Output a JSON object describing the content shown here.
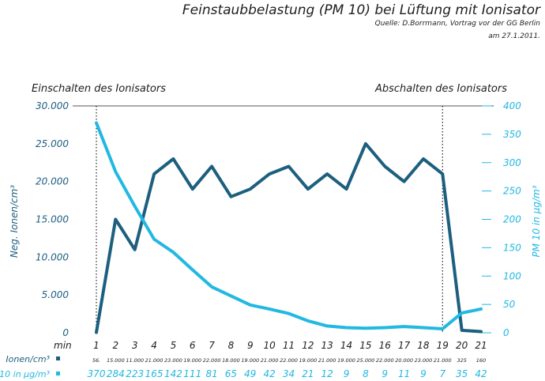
{
  "header": {
    "title": "Feinstaubbelastung (PM 10) bei Lüftung mit Ionisator",
    "source_line1": "Quelle: D.Borrmann, Vortrag vor der GG Berlin",
    "source_line2": "am 27.1.2011."
  },
  "annotations": {
    "start": "Einschalten des Ionisators",
    "stop": "Abschalten des Ionisators"
  },
  "colors": {
    "ions": "#1d5f7e",
    "pm10": "#21b8e2",
    "text": "#1e1e1e"
  },
  "chart_data": {
    "type": "line",
    "title": "Feinstaubbelastung (PM 10) bei Lüftung mit Ionisator",
    "xlabel": "min",
    "x": [
      1,
      2,
      3,
      4,
      5,
      6,
      7,
      8,
      9,
      10,
      11,
      12,
      13,
      14,
      15,
      16,
      17,
      18,
      19,
      20,
      21
    ],
    "y_left": {
      "label": "Neg. Ionen/cm³",
      "range": [
        0,
        30000
      ],
      "ticks": [
        "30.000",
        "25.000",
        "20.000",
        "15.000",
        "10.000",
        "5.000",
        "0"
      ]
    },
    "y_right": {
      "label": "PM 10 in µg/m³",
      "range": [
        0,
        400
      ],
      "ticks": [
        "400",
        "350",
        "300",
        "250",
        "200",
        "150",
        "100",
        "50",
        "0"
      ]
    },
    "series": [
      {
        "name": "Ionen/cm³",
        "axis": "left",
        "color": "#1d5f7e",
        "values": [
          56,
          15000,
          11000,
          21000,
          23000,
          19000,
          22000,
          18000,
          19000,
          21000,
          22000,
          19000,
          21000,
          19000,
          25000,
          22000,
          20000,
          23000,
          21000,
          325,
          160
        ],
        "labels": [
          "56.",
          "15.000",
          "11.000",
          "21.000",
          "23.000",
          "19.000",
          "22.000",
          "18.000",
          "19.000",
          "21.000",
          "22.000",
          "19.000",
          "21.000",
          "19.000",
          "25.000",
          "22.000",
          "20.000",
          "23.000",
          "21.000",
          "325",
          "160"
        ]
      },
      {
        "name": "PM 10 in µg/m³",
        "axis": "right",
        "color": "#21b8e2",
        "values": [
          370,
          284,
          223,
          165,
          142,
          111,
          81,
          65,
          49,
          42,
          34,
          21,
          12,
          9,
          8,
          9,
          11,
          9,
          7,
          35,
          42
        ],
        "labels": [
          "370",
          "284",
          "223",
          "165",
          "142",
          "111",
          "81",
          "65",
          "49",
          "42",
          "34",
          "21",
          "12",
          "9",
          "8",
          "9",
          "11",
          "9",
          "7",
          "35",
          "42"
        ]
      }
    ],
    "markers": [
      {
        "x": 1,
        "label": "Einschalten des Ionisators"
      },
      {
        "x": 19,
        "label": "Abschalten des Ionisators"
      }
    ],
    "legend": "bottom-rows",
    "grid": false
  }
}
